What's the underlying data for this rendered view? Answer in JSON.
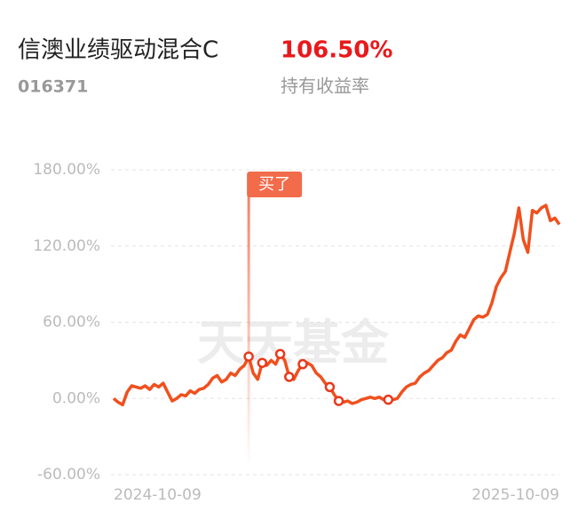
{
  "header": {
    "title": "信澳业绩驱动混合C",
    "return_value": "106.50%",
    "code": "016371",
    "return_label": "持有收益率"
  },
  "chart_data": {
    "type": "line",
    "color": "#f0501e",
    "grid": true,
    "watermark": "天天基金",
    "annotation": "买了",
    "ylim": [
      -60,
      180
    ],
    "yticks": [
      {
        "value": -60,
        "label": "-60.00%"
      },
      {
        "value": 0,
        "label": "0.00%"
      },
      {
        "value": 60,
        "label": "60.00%"
      },
      {
        "value": 120,
        "label": "120.00%"
      },
      {
        "value": 180,
        "label": "180.00%"
      }
    ],
    "categories": [
      "2024-10-09",
      null,
      null,
      null,
      null,
      null,
      null,
      null,
      null,
      null,
      null,
      null,
      null,
      null,
      null,
      null,
      null,
      null,
      null,
      null,
      null,
      null,
      null,
      null,
      null,
      null,
      null,
      null,
      null,
      null,
      null,
      null,
      null,
      null,
      null,
      null,
      null,
      null,
      null,
      null,
      null,
      null,
      null,
      null,
      null,
      null,
      null,
      null,
      null,
      null,
      null,
      null,
      null,
      null,
      null,
      null,
      null,
      null,
      null,
      null,
      null,
      null,
      null,
      null,
      null,
      null,
      null,
      null,
      null,
      null,
      null,
      null,
      null,
      null,
      null,
      null,
      null,
      null,
      null,
      null,
      null,
      null,
      null,
      null,
      null,
      null,
      null,
      null,
      null,
      null,
      null,
      null,
      null,
      null,
      null,
      null,
      null,
      null,
      null,
      "2025-10-09"
    ],
    "values": [
      0,
      -3,
      -5,
      5,
      10,
      9,
      8,
      10,
      7,
      11,
      9,
      12,
      5,
      -2,
      0,
      3,
      2,
      6,
      4,
      7,
      8,
      11,
      16,
      18,
      13,
      15,
      20,
      18,
      23,
      26,
      33,
      20,
      15,
      28,
      26,
      30,
      27,
      35,
      30,
      17,
      15,
      22,
      27,
      28,
      26,
      20,
      17,
      12,
      9,
      3,
      -2,
      -3,
      -2,
      -4,
      -3,
      -1,
      0,
      1,
      0,
      1,
      -1,
      -1,
      -1,
      0,
      5,
      9,
      11,
      12,
      17,
      20,
      22,
      26,
      30,
      32,
      36,
      38,
      45,
      50,
      48,
      55,
      62,
      65,
      64,
      66,
      75,
      88,
      95,
      100,
      115,
      130,
      150,
      125,
      115,
      148,
      146,
      150,
      152,
      140,
      142,
      137
    ]
  }
}
